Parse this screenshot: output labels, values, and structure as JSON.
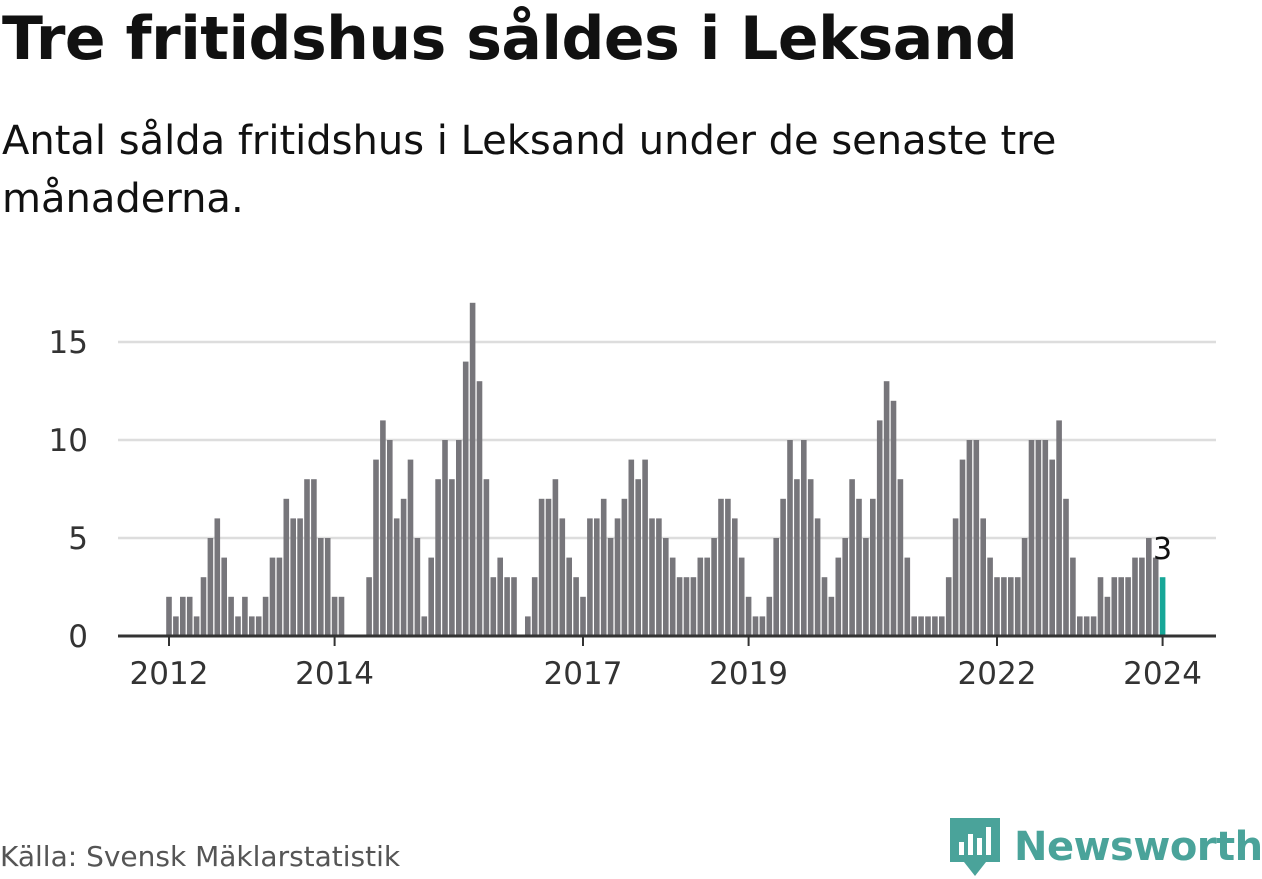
{
  "header": {
    "title": "Tre fritidshus såldes i Leksand",
    "subtitle": "Antal sålda fritidshus i Leksand under de senaste tre månaderna."
  },
  "footer": {
    "source": "Källa: Svensk Mäklarstatistik",
    "brand": "Newsworthy",
    "brand_icon": "newsworthy-logo-icon"
  },
  "colors": {
    "bar": "#77767b",
    "highlight": "#17a697",
    "grid": "#dddddd",
    "axis": "#333333",
    "brand": "#4aa39a"
  },
  "chart_data": {
    "type": "bar",
    "title": "Tre fritidshus såldes i Leksand",
    "xlabel": "",
    "ylabel": "",
    "ylim": [
      0,
      17
    ],
    "yticks": [
      0,
      5,
      10,
      15
    ],
    "xtick_labels": [
      "2012",
      "2014",
      "2017",
      "2019",
      "2022",
      "2024"
    ],
    "xtick_indices": [
      0,
      24,
      60,
      84,
      120,
      144
    ],
    "grid": true,
    "start_index": -6,
    "values": [
      0,
      0,
      0,
      0,
      0,
      0,
      2,
      1,
      2,
      2,
      1,
      3,
      5,
      6,
      4,
      2,
      1,
      2,
      1,
      1,
      2,
      4,
      4,
      7,
      6,
      6,
      8,
      8,
      5,
      5,
      2,
      2,
      0,
      0,
      0,
      3,
      9,
      11,
      10,
      6,
      7,
      9,
      5,
      1,
      4,
      8,
      10,
      8,
      10,
      14,
      17,
      13,
      8,
      3,
      4,
      3,
      3,
      0,
      1,
      3,
      7,
      7,
      8,
      6,
      4,
      3,
      2,
      6,
      6,
      7,
      5,
      6,
      7,
      9,
      8,
      9,
      6,
      6,
      5,
      4,
      3,
      3,
      3,
      4,
      4,
      5,
      7,
      7,
      6,
      4,
      2,
      1,
      1,
      2,
      5,
      7,
      10,
      8,
      10,
      8,
      6,
      3,
      2,
      4,
      5,
      8,
      7,
      5,
      7,
      11,
      13,
      12,
      8,
      4,
      1,
      1,
      1,
      1,
      1,
      3,
      6,
      9,
      10,
      10,
      6,
      4,
      3,
      3,
      3,
      3,
      5,
      10,
      10,
      10,
      9,
      11,
      7,
      4,
      1,
      1,
      1,
      3,
      2,
      3,
      3,
      3,
      4,
      4,
      5,
      4,
      3
    ],
    "highlight_last": 1,
    "annotation": {
      "text": "3",
      "value": 3
    }
  }
}
